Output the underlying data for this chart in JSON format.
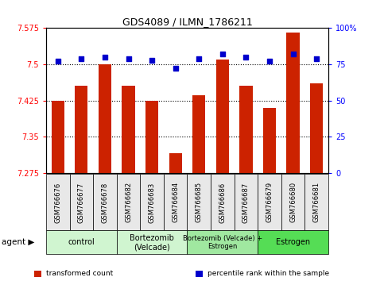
{
  "title": "GDS4089 / ILMN_1786211",
  "samples": [
    "GSM766676",
    "GSM766677",
    "GSM766678",
    "GSM766682",
    "GSM766683",
    "GSM766684",
    "GSM766685",
    "GSM766686",
    "GSM766687",
    "GSM766679",
    "GSM766680",
    "GSM766681"
  ],
  "red_values": [
    7.425,
    7.455,
    7.5,
    7.455,
    7.425,
    7.315,
    7.435,
    7.51,
    7.455,
    7.41,
    7.565,
    7.46
  ],
  "blue_values": [
    77,
    79,
    80,
    79,
    78,
    72,
    79,
    82,
    80,
    77,
    82,
    79
  ],
  "ylim_left": [
    7.275,
    7.575
  ],
  "ylim_right": [
    0,
    100
  ],
  "yticks_left": [
    7.275,
    7.35,
    7.425,
    7.5,
    7.575
  ],
  "yticks_right": [
    0,
    25,
    50,
    75,
    100
  ],
  "ytick_labels_left": [
    "7.275",
    "7.35",
    "7.425",
    "7.5",
    "7.575"
  ],
  "ytick_labels_right": [
    "0",
    "25",
    "50",
    "75",
    "100%"
  ],
  "hlines": [
    7.35,
    7.425,
    7.5
  ],
  "groups": [
    {
      "label": "control",
      "start": 0,
      "end": 3,
      "color": "#d0f5d0"
    },
    {
      "label": "Bortezomib\n(Velcade)",
      "start": 3,
      "end": 6,
      "color": "#d0f5d0"
    },
    {
      "label": "Bortezomib (Velcade) +\nEstrogen",
      "start": 6,
      "end": 9,
      "color": "#a0e8a0"
    },
    {
      "label": "Estrogen",
      "start": 9,
      "end": 12,
      "color": "#55dd55"
    }
  ],
  "bar_color": "#cc2200",
  "dot_color": "#0000cc",
  "bar_bottom": 7.275,
  "bar_width": 0.55,
  "legend_items": [
    {
      "color": "#cc2200",
      "label": "transformed count"
    },
    {
      "color": "#0000cc",
      "label": "percentile rank within the sample"
    }
  ]
}
